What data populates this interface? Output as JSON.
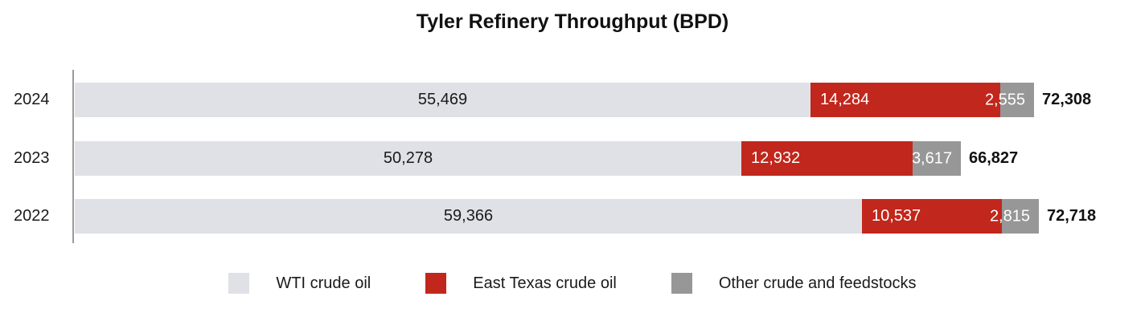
{
  "chart_data": {
    "type": "bar",
    "orientation": "horizontal",
    "stacked": true,
    "title": "Tyler Refinery Throughput (BPD)",
    "xlabel": "",
    "ylabel": "",
    "xlim": [
      0,
      73500
    ],
    "grid": false,
    "legend_position": "bottom",
    "categories": [
      "2024",
      "2023",
      "2022"
    ],
    "series": [
      {
        "name": "WTI crude oil",
        "color": "#E0E1E6",
        "values": [
          55469,
          50278,
          59366
        ]
      },
      {
        "name": "East Texas crude oil",
        "color": "#C1271C",
        "values": [
          14284,
          12932,
          10537
        ]
      },
      {
        "name": "Other crude and feedstocks",
        "color": "#979797",
        "values": [
          2555,
          3617,
          2815
        ]
      }
    ],
    "totals": [
      72308,
      66827,
      72718
    ],
    "value_labels": {
      "wti": [
        "55,469",
        "50,278",
        "59,366"
      ],
      "east_texas": [
        "14,284",
        "12,932",
        "10,537"
      ],
      "other": [
        "2,555",
        "3,617",
        "2,815"
      ],
      "totals": [
        "72,308",
        "66,827",
        "72,718"
      ]
    }
  },
  "legend": {
    "items": [
      {
        "label": "WTI crude oil",
        "color": "#E0E1E6"
      },
      {
        "label": "East Texas crude oil",
        "color": "#C1271C"
      },
      {
        "label": "Other crude and feedstocks",
        "color": "#979797"
      }
    ]
  }
}
